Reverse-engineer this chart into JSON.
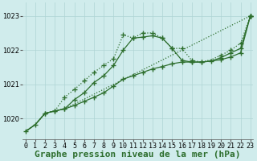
{
  "title": "Graphe pression niveau de la mer (hPa)",
  "bg_color": "#d0ecec",
  "grid_color": "#aed4d4",
  "line_color": "#2d6e2d",
  "x_ticks": [
    0,
    1,
    2,
    3,
    4,
    5,
    6,
    7,
    8,
    9,
    10,
    11,
    12,
    13,
    14,
    15,
    16,
    17,
    18,
    19,
    20,
    21,
    22,
    23
  ],
  "y_ticks": [
    1020,
    1021,
    1022,
    1023
  ],
  "ylim": [
    1019.4,
    1023.4
  ],
  "xlim": [
    -0.3,
    23.3
  ],
  "series": [
    {
      "x": [
        0,
        1,
        2,
        3,
        4,
        23
      ],
      "y": [
        1019.62,
        1019.82,
        1020.15,
        1020.22,
        1020.28,
        1023.0
      ],
      "linestyle": "dotted",
      "marker_x": [
        0,
        1,
        2,
        3,
        4,
        23
      ],
      "marker_y": [
        1019.62,
        1019.82,
        1020.15,
        1020.22,
        1020.28,
        1023.0
      ]
    },
    {
      "x": [
        0,
        1,
        2,
        3,
        4,
        5,
        6,
        7,
        8,
        9,
        10,
        11,
        12,
        13,
        14,
        15,
        16,
        17,
        18,
        19,
        20,
        21,
        22,
        23
      ],
      "y": [
        1019.62,
        1019.82,
        1020.15,
        1020.22,
        1020.28,
        1020.38,
        1020.5,
        1020.62,
        1020.75,
        1020.95,
        1021.15,
        1021.25,
        1021.35,
        1021.45,
        1021.52,
        1021.6,
        1021.65,
        1021.65,
        1021.65,
        1021.68,
        1021.72,
        1021.8,
        1021.92,
        1023.0
      ],
      "linestyle": "solid",
      "marker_x": [
        2,
        3,
        4,
        5,
        6,
        7,
        8,
        9,
        10,
        11,
        12,
        13,
        14,
        15,
        16,
        17,
        18,
        19,
        20,
        21,
        22,
        23
      ],
      "marker_y": [
        1020.15,
        1020.22,
        1020.28,
        1020.38,
        1020.5,
        1020.62,
        1020.75,
        1020.95,
        1021.15,
        1021.25,
        1021.35,
        1021.45,
        1021.52,
        1021.6,
        1021.65,
        1021.65,
        1021.65,
        1021.68,
        1021.72,
        1021.8,
        1021.92,
        1023.0
      ]
    },
    {
      "x": [
        0,
        1,
        2,
        3,
        4,
        5,
        6,
        7,
        8,
        9,
        10,
        11,
        12,
        13,
        14,
        15,
        16,
        17,
        18,
        19,
        20,
        21,
        22,
        23
      ],
      "y": [
        1019.62,
        1019.82,
        1020.15,
        1020.22,
        1020.28,
        1020.55,
        1020.75,
        1021.05,
        1021.25,
        1021.55,
        1022.0,
        1022.35,
        1022.38,
        1022.42,
        1022.35,
        1022.05,
        1021.7,
        1021.65,
        1021.65,
        1021.68,
        1021.78,
        1021.92,
        1022.05,
        1023.0
      ],
      "linestyle": "solid",
      "marker_x": [
        5,
        6,
        7,
        8,
        9,
        10,
        11,
        12,
        13,
        14,
        15,
        16,
        17,
        20,
        21,
        22,
        23
      ],
      "marker_y": [
        1020.55,
        1020.75,
        1021.05,
        1021.25,
        1021.55,
        1022.0,
        1022.35,
        1022.38,
        1022.42,
        1022.35,
        1022.05,
        1021.7,
        1021.65,
        1021.78,
        1021.92,
        1022.05,
        1023.0
      ]
    },
    {
      "x": [
        0,
        1,
        2,
        3,
        4,
        5,
        6,
        7,
        8,
        9,
        10,
        11,
        12,
        13,
        14,
        15,
        16,
        17,
        18,
        19,
        20,
        21,
        22,
        23
      ],
      "y": [
        1019.62,
        1019.82,
        1020.15,
        1020.22,
        1020.62,
        1020.85,
        1021.1,
        1021.35,
        1021.55,
        1021.75,
        1022.45,
        1022.35,
        1022.5,
        1022.5,
        1022.35,
        1022.05,
        1022.05,
        1021.7,
        1021.65,
        1021.72,
        1021.85,
        1022.0,
        1022.2,
        1023.0
      ],
      "linestyle": "dotted",
      "marker_x": [
        4,
        5,
        6,
        7,
        8,
        9,
        10,
        11,
        12,
        13,
        14,
        15,
        16,
        17,
        18,
        20,
        21,
        22,
        23
      ],
      "marker_y": [
        1020.62,
        1020.85,
        1021.1,
        1021.35,
        1021.55,
        1021.75,
        1022.45,
        1022.35,
        1022.5,
        1022.5,
        1022.35,
        1022.05,
        1022.05,
        1021.7,
        1021.65,
        1021.85,
        1022.0,
        1022.2,
        1023.0
      ]
    }
  ],
  "marker": "+",
  "markersize": 4,
  "linewidth": 0.9,
  "title_fontsize": 8,
  "tick_fontsize": 6
}
